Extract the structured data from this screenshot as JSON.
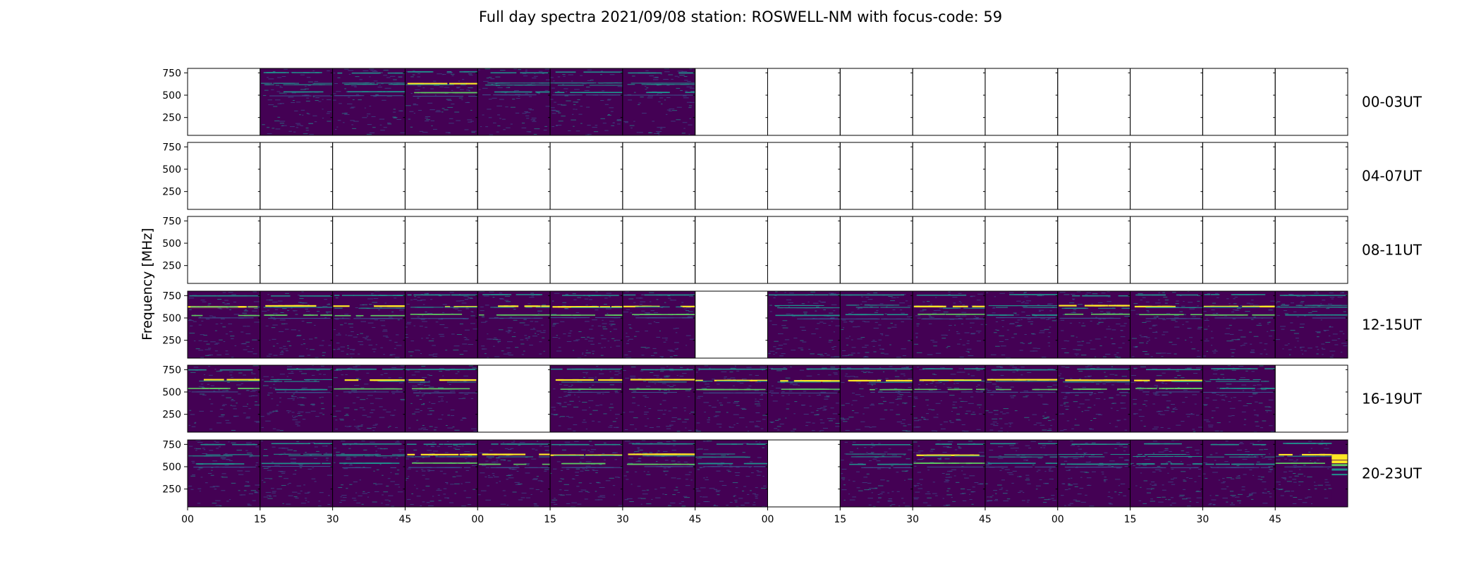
{
  "title": "Full day spectra 2021/09/08 station: ROSWELL-NM with focus-code: 59",
  "chart_data": {
    "type": "heatmap",
    "title": "Full day spectra 2021/09/08 station: ROSWELL-NM with focus-code: 59",
    "ylabel": "Frequency [MHz]",
    "xlabel": "",
    "y_ticks": [
      "250",
      "500",
      "750"
    ],
    "x_tick_labels": [
      "00",
      "15",
      "30",
      "45",
      "00",
      "15",
      "30",
      "45",
      "00",
      "15",
      "30",
      "45",
      "00",
      "15",
      "30",
      "45"
    ],
    "colormap": [
      "#440154",
      "#3b528b",
      "#21918c",
      "#5ec962",
      "#fde725"
    ],
    "rows": [
      {
        "label": "00-03UT",
        "panels": [
          0,
          1,
          1,
          2,
          1,
          1,
          1,
          0,
          0,
          0,
          0,
          0,
          0,
          0,
          0,
          0
        ]
      },
      {
        "label": "04-07UT",
        "panels": [
          0,
          0,
          0,
          0,
          0,
          0,
          0,
          0,
          0,
          0,
          0,
          0,
          0,
          0,
          0,
          0
        ]
      },
      {
        "label": "08-11UT",
        "panels": [
          0,
          0,
          0,
          0,
          0,
          0,
          0,
          0,
          0,
          0,
          0,
          0,
          0,
          0,
          0,
          0
        ]
      },
      {
        "label": "12-15UT",
        "panels": [
          2,
          2,
          2,
          2,
          2,
          2,
          2,
          0,
          1,
          1,
          2,
          1,
          2,
          2,
          2,
          1
        ]
      },
      {
        "label": "16-19UT",
        "panels": [
          2,
          1,
          2,
          2,
          0,
          2,
          2,
          2,
          2,
          2,
          2,
          2,
          2,
          2,
          1,
          0
        ]
      },
      {
        "label": "20-23UT",
        "panels": [
          1,
          1,
          1,
          2,
          2,
          2,
          2,
          1,
          0,
          1,
          2,
          1,
          1,
          1,
          1,
          3
        ]
      }
    ],
    "panel_states": {
      "0": "no data",
      "1": "spectrum",
      "2": "spectrum with bright bands",
      "3": "partial spectrum"
    }
  }
}
